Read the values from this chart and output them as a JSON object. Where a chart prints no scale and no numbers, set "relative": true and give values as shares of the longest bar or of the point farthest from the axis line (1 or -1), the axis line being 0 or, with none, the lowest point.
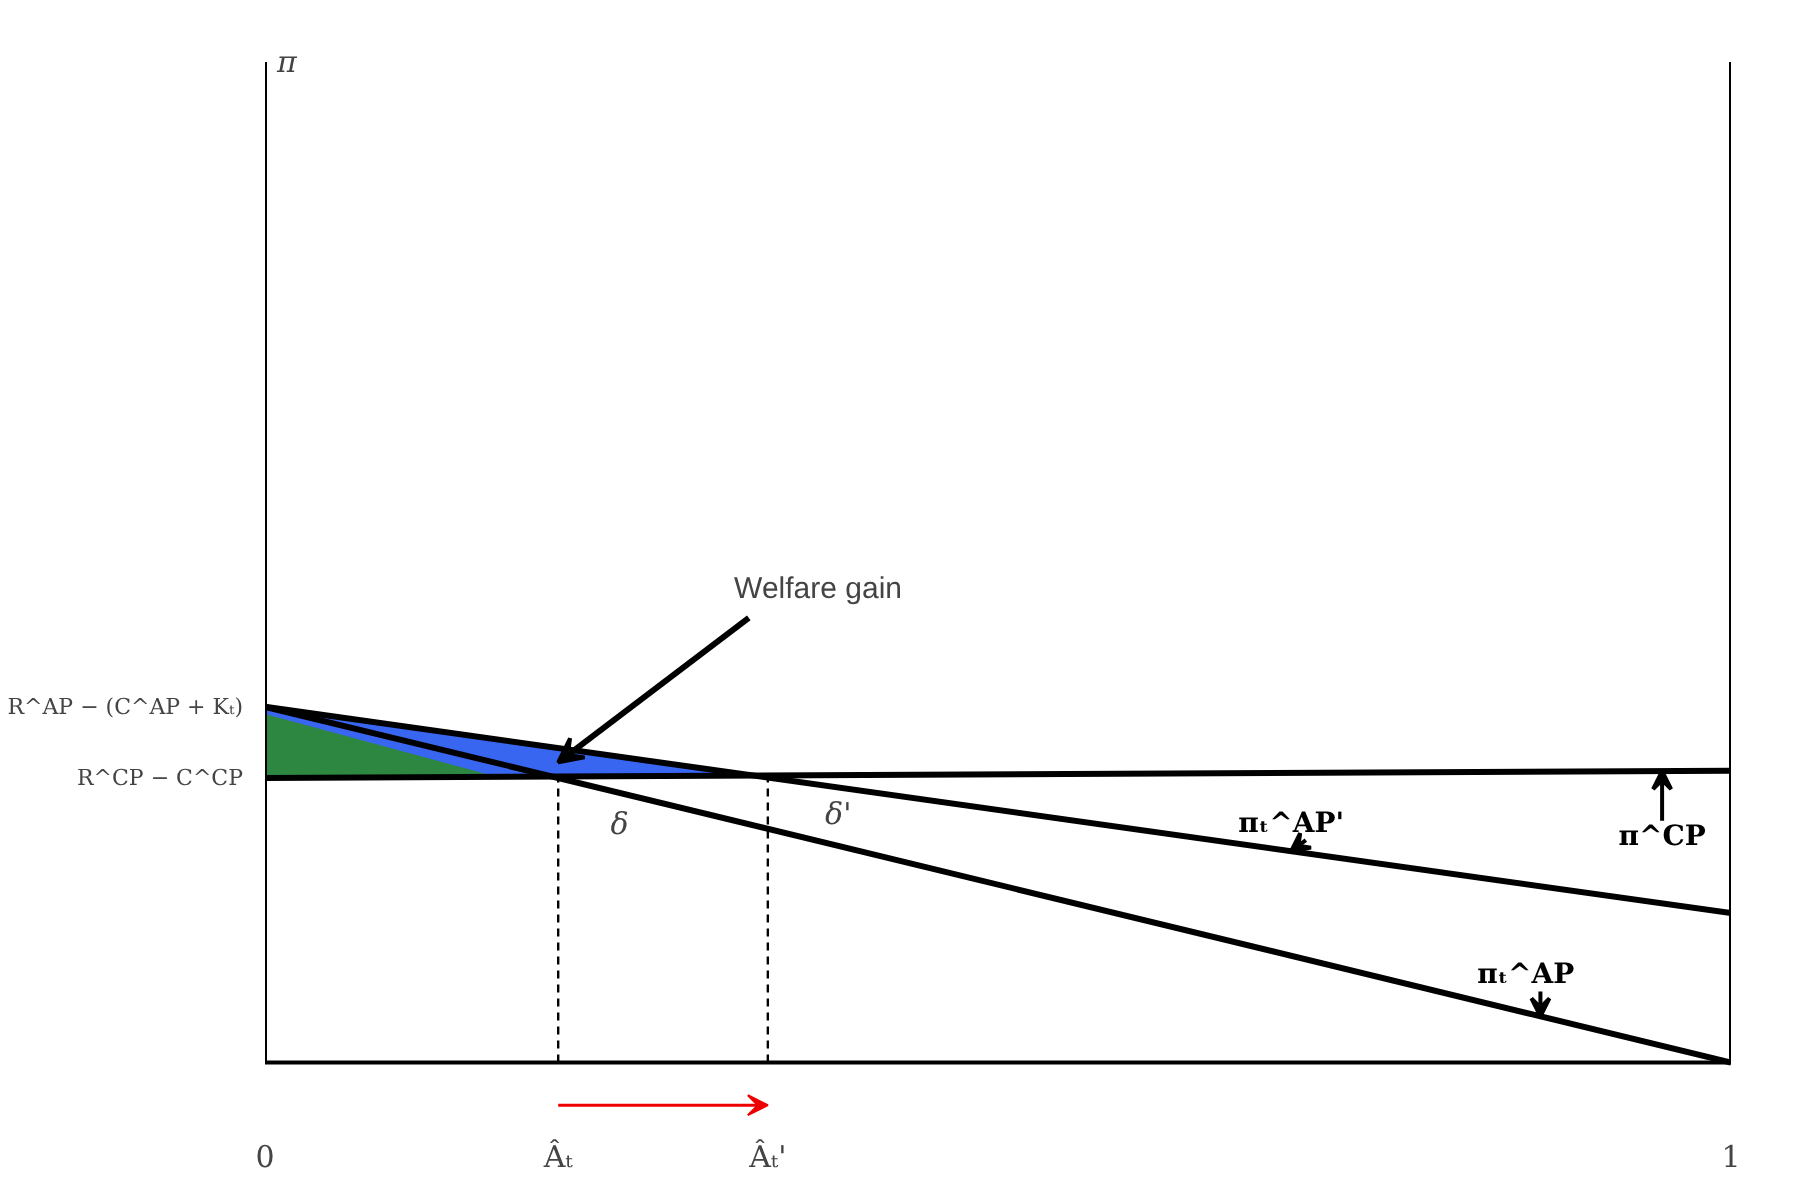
{
  "chart_data": {
    "type": "line",
    "relative": true,
    "xlim": [
      0,
      1
    ],
    "xticks": [
      0,
      {
        "value": 0.2,
        "label": "Âₜ"
      },
      {
        "value": 0.343,
        "label": "Âₜ'"
      },
      1
    ],
    "series": [
      {
        "type": "area",
        "color": "#2255ee",
        "x": [
          0,
          0.2,
          0.343
        ],
        "values": [
          1,
          0.884,
          0.8
        ]
      },
      {
        "type": "area",
        "color": "#2e8b2e",
        "x": [
          0,
          0.161
        ],
        "values": [
          0.98,
          0.8
        ]
      },
      {
        "name": "π^CP",
        "color": "#000000",
        "x": [
          0,
          1
        ],
        "values": [
          0.8,
          0.82
        ]
      },
      {
        "name": "πₜ^AP",
        "color": "#000000",
        "x": [
          0,
          1
        ],
        "values": [
          1,
          0
        ]
      },
      {
        "name": "πₜ^AP'",
        "color": "#000000",
        "x": [
          0,
          1
        ],
        "values": [
          1,
          0.42
        ]
      }
    ],
    "ref_lines": [
      {
        "axis": "x",
        "value": 0.2,
        "line_style": "dashed",
        "color": "#000000"
      },
      {
        "axis": "x",
        "value": 0.343,
        "line_style": "dashed",
        "color": "#000000"
      }
    ],
    "annotations": [
      "π",
      "Welfare gain",
      "δ",
      "δ'",
      {
        "text": "R^AP − (C^AP + Kₜ)",
        "x": 0,
        "y": 1
      },
      {
        "text": "R^CP − C^CP",
        "x": 0,
        "y": 0.8
      }
    ]
  }
}
